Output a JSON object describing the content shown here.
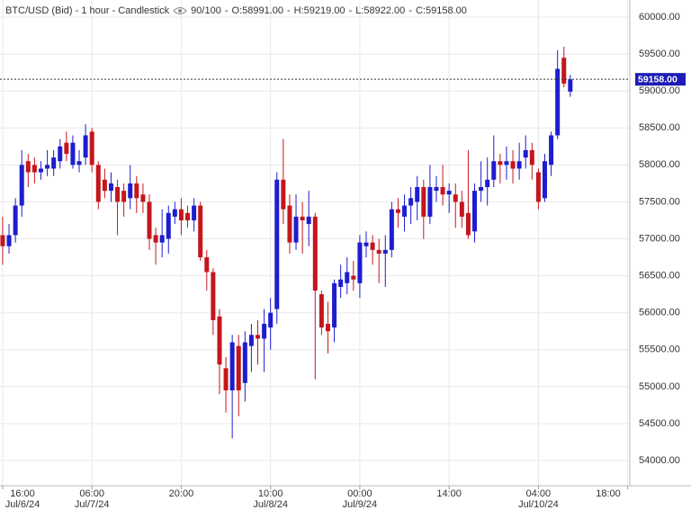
{
  "chart_data": {
    "type": "candlestick",
    "title": "BTC/USD (Bid) - 1 hour - Candlestick",
    "count": "90/100",
    "ohlc_labels": [
      "O:58991.00",
      "H:59219.00",
      "L:58922.00",
      "C:59158.00"
    ],
    "up_color": "#1d1dd0",
    "down_color": "#c4161c",
    "grid": true,
    "x": [
      "2024-07-06 16:00",
      "2024-07-06 17:00",
      "2024-07-06 18:00",
      "2024-07-06 19:00",
      "2024-07-06 20:00",
      "2024-07-06 21:00",
      "2024-07-06 22:00",
      "2024-07-06 23:00",
      "2024-07-07 00:00",
      "2024-07-07 01:00",
      "2024-07-07 02:00",
      "2024-07-07 03:00",
      "2024-07-07 04:00",
      "2024-07-07 05:00",
      "2024-07-07 06:00",
      "2024-07-07 07:00",
      "2024-07-07 08:00",
      "2024-07-07 09:00",
      "2024-07-07 10:00",
      "2024-07-07 11:00",
      "2024-07-07 12:00",
      "2024-07-07 13:00",
      "2024-07-07 14:00",
      "2024-07-07 15:00",
      "2024-07-07 16:00",
      "2024-07-07 17:00",
      "2024-07-07 18:00",
      "2024-07-07 19:00",
      "2024-07-07 20:00",
      "2024-07-07 21:00",
      "2024-07-07 22:00",
      "2024-07-07 23:00",
      "2024-07-08 00:00",
      "2024-07-08 01:00",
      "2024-07-08 02:00",
      "2024-07-08 03:00",
      "2024-07-08 04:00",
      "2024-07-08 05:00",
      "2024-07-08 06:00",
      "2024-07-08 07:00",
      "2024-07-08 08:00",
      "2024-07-08 09:00",
      "2024-07-08 10:00",
      "2024-07-08 11:00",
      "2024-07-08 12:00",
      "2024-07-08 13:00",
      "2024-07-08 14:00",
      "2024-07-08 15:00",
      "2024-07-08 16:00",
      "2024-07-08 17:00",
      "2024-07-08 18:00",
      "2024-07-08 19:00",
      "2024-07-08 20:00",
      "2024-07-08 21:00",
      "2024-07-08 22:00",
      "2024-07-08 23:00",
      "2024-07-09 00:00",
      "2024-07-09 01:00",
      "2024-07-09 02:00",
      "2024-07-09 03:00",
      "2024-07-09 04:00",
      "2024-07-09 05:00",
      "2024-07-09 06:00",
      "2024-07-09 07:00",
      "2024-07-09 08:00",
      "2024-07-09 09:00",
      "2024-07-09 10:00",
      "2024-07-09 11:00",
      "2024-07-09 12:00",
      "2024-07-09 13:00",
      "2024-07-09 14:00",
      "2024-07-09 15:00",
      "2024-07-09 16:00",
      "2024-07-09 17:00",
      "2024-07-09 18:00",
      "2024-07-09 19:00",
      "2024-07-09 20:00",
      "2024-07-09 21:00",
      "2024-07-09 22:00",
      "2024-07-09 23:00",
      "2024-07-10 00:00",
      "2024-07-10 01:00",
      "2024-07-10 02:00",
      "2024-07-10 03:00",
      "2024-07-10 04:00",
      "2024-07-10 05:00",
      "2024-07-10 06:00",
      "2024-07-10 07:00",
      "2024-07-10 08:00",
      "2024-07-10 09:00"
    ],
    "open": [
      57050,
      56900,
      57050,
      57450,
      58050,
      58000,
      57900,
      57950,
      57950,
      58050,
      58300,
      58000,
      58000,
      58100,
      58450,
      58000,
      57800,
      57650,
      57700,
      57650,
      57550,
      57750,
      57600,
      57500,
      57050,
      56950,
      57000,
      57300,
      57400,
      57350,
      57250,
      57450,
      56750,
      56550,
      55950,
      55250,
      54950,
      55550,
      55050,
      55550,
      55700,
      55650,
      55800,
      56050,
      57800,
      57450,
      56950,
      57300,
      57200,
      57300,
      56250,
      55850,
      55800,
      56350,
      56400,
      56500,
      56400,
      56900,
      56950,
      56850,
      56800,
      56850,
      57400,
      57300,
      57450,
      57500,
      57700,
      57300,
      57650,
      57700,
      57600,
      57600,
      57500,
      57350,
      57100,
      57650,
      57700,
      57800,
      58050,
      58000,
      58050,
      57950,
      58100,
      58200,
      57900,
      57550,
      58000,
      58400,
      59450,
      58991
    ],
    "high": [
      57300,
      57200,
      57550,
      58200,
      58150,
      58100,
      58050,
      58200,
      58200,
      58350,
      58450,
      58400,
      58200,
      58550,
      58500,
      58050,
      57950,
      57900,
      57800,
      57750,
      58000,
      57850,
      57750,
      57600,
      57150,
      57400,
      57450,
      57500,
      57550,
      57450,
      57550,
      57500,
      56850,
      56600,
      56050,
      55400,
      55700,
      55700,
      55750,
      55850,
      55900,
      56050,
      56200,
      57900,
      58350,
      57600,
      57600,
      57500,
      57650,
      57350,
      56300,
      56150,
      56450,
      56650,
      56750,
      56700,
      57050,
      57100,
      57050,
      57000,
      57050,
      57500,
      57550,
      57600,
      57700,
      57850,
      57800,
      58000,
      57850,
      58000,
      57750,
      57750,
      57650,
      58200,
      57750,
      58050,
      58100,
      58400,
      58150,
      58250,
      58200,
      58300,
      58400,
      58300,
      57950,
      58150,
      58450,
      59550,
      59600,
      59219
    ],
    "low": [
      56650,
      56800,
      56950,
      57300,
      57700,
      57750,
      57800,
      57850,
      57850,
      57950,
      58050,
      57950,
      57900,
      58000,
      57900,
      57400,
      57550,
      57500,
      57050,
      57300,
      57400,
      57350,
      57350,
      56850,
      56650,
      56750,
      56800,
      57200,
      57050,
      57150,
      57100,
      56700,
      56300,
      55700,
      54900,
      54650,
      54300,
      54600,
      54800,
      55200,
      55300,
      55200,
      55500,
      55850,
      57200,
      56800,
      56850,
      56800,
      56900,
      55100,
      55700,
      55450,
      55600,
      56200,
      56250,
      56300,
      56200,
      56750,
      56650,
      56400,
      56350,
      56750,
      57150,
      57100,
      57200,
      57250,
      57000,
      57200,
      57500,
      57450,
      57350,
      57150,
      57150,
      57000,
      56950,
      57500,
      57450,
      57700,
      57750,
      57800,
      57750,
      57800,
      57950,
      57800,
      57400,
      57500,
      57850,
      58350,
      59050,
      58922
    ],
    "close": [
      56900,
      57050,
      57450,
      58000,
      57900,
      57900,
      57950,
      58000,
      58100,
      58250,
      58150,
      58300,
      58050,
      58400,
      58000,
      57500,
      57650,
      57750,
      57500,
      57500,
      57750,
      57550,
      57500,
      57000,
      56950,
      57050,
      57350,
      57400,
      57250,
      57250,
      57450,
      56750,
      56550,
      55900,
      55300,
      54950,
      55600,
      54950,
      55600,
      55700,
      55650,
      55850,
      56000,
      57800,
      57400,
      56950,
      57300,
      57250,
      57300,
      56300,
      55800,
      55750,
      56400,
      56450,
      56550,
      56450,
      56950,
      56950,
      56850,
      56800,
      56850,
      57400,
      57350,
      57450,
      57550,
      57700,
      57300,
      57700,
      57700,
      57600,
      57650,
      57500,
      57300,
      57050,
      57650,
      57700,
      57800,
      58050,
      58000,
      58050,
      57950,
      58050,
      58200,
      58000,
      57500,
      58050,
      58400,
      59300,
      59100,
      59158
    ],
    "xlim": [
      "2024-07-06 15:35",
      "2024-07-10 18:20"
    ],
    "xticks": [
      {
        "value": "2024-07-06 16:00",
        "label": "16:00",
        "date": "Jul/6/24"
      },
      {
        "value": "2024-07-07 06:00",
        "label": "06:00",
        "date": "Jul/7/24"
      },
      {
        "value": "2024-07-07 20:00",
        "label": "20:00"
      },
      {
        "value": "2024-07-08 10:00",
        "label": "10:00",
        "date": "Jul/8/24"
      },
      {
        "value": "2024-07-09 00:00",
        "label": "00:00",
        "date": "Jul/9/24"
      },
      {
        "value": "2024-07-09 14:00",
        "label": "14:00"
      },
      {
        "value": "2024-07-10 04:00",
        "label": "04:00",
        "date": "Jul/10/24"
      },
      {
        "value": "2024-07-10 18:00",
        "label": "18:00"
      }
    ],
    "ylim": [
      53660,
      60231
    ],
    "yticks": [
      {
        "value": 54000,
        "label": "54000.00"
      },
      {
        "value": 54500,
        "label": "54500.00"
      },
      {
        "value": 55000,
        "label": "55000.00"
      },
      {
        "value": 55500,
        "label": "55500.00"
      },
      {
        "value": 56000,
        "label": "56000.00"
      },
      {
        "value": 56500,
        "label": "56500.00"
      },
      {
        "value": 57000,
        "label": "57000.00"
      },
      {
        "value": 57500,
        "label": "57500.00"
      },
      {
        "value": 58000,
        "label": "58000.00"
      },
      {
        "value": 58500,
        "label": "58500.00"
      },
      {
        "value": 59000,
        "label": "59000.00"
      },
      {
        "value": 59500,
        "label": "59500.00"
      },
      {
        "value": 60000,
        "label": "60000.00"
      }
    ],
    "last_price": {
      "value": 59158,
      "label": "59158.00",
      "color": "#1d1db5"
    }
  }
}
